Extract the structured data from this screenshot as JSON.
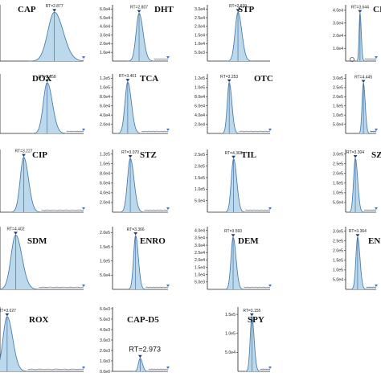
{
  "chart_data": [
    {
      "id": "CAP",
      "type": "area",
      "title": "CAP",
      "rt_label": "RT=2.877",
      "peak_rt": 2.877,
      "peak_height_frac": 0.95,
      "peak_width": 0.11,
      "show_tails": true,
      "xlim": [
        2.45,
        3.1
      ],
      "yticks": [],
      "ylabel": "",
      "xlabel": ""
    },
    {
      "id": "DHT",
      "type": "area",
      "title": "DHT",
      "rt_label": "RT=2.807",
      "peak_rt": 2.807,
      "peak_height_frac": 0.93,
      "peak_width": 0.1,
      "show_tails": true,
      "xlim": [
        2.4,
        3.25
      ],
      "yticks": [
        "1.0e4",
        "2.0e4",
        "3.0e4",
        "4.0e4",
        "5.0e4",
        "6.0e4"
      ],
      "ylabel": "",
      "xlabel": ""
    },
    {
      "id": "STP",
      "type": "area",
      "title": "STP",
      "rt_label": "RT=2.839",
      "peak_rt": 2.839,
      "peak_height_frac": 0.95,
      "peak_width": 0.09,
      "show_tails": false,
      "xlim": [
        2.4,
        3.3
      ],
      "yticks": [
        "5.0e3",
        "1.0e4",
        "1.5e4",
        "2.0e4",
        "2.5e4",
        "3.0e4"
      ],
      "ylabel": "",
      "xlabel": ""
    },
    {
      "id": "CI",
      "type": "area",
      "title": "CI",
      "rt_label": "RT=3.644",
      "peak_rt": 3.644,
      "peak_height_frac": 0.93,
      "peak_width": 0.07,
      "show_tails": true,
      "xlim": [
        3.15,
        4.2
      ],
      "yticks": [
        "1.0e4",
        "2.0e4",
        "3.0e4",
        "4.0e4"
      ],
      "ylabel": "",
      "xlabel": ""
    },
    {
      "id": "DOX",
      "type": "area",
      "title": "DOX",
      "rt_label": "RT=3.058",
      "peak_rt": 3.058,
      "peak_height_frac": 0.93,
      "peak_width": 0.08,
      "show_tails": true,
      "xlim": [
        2.6,
        3.4
      ],
      "yticks": [],
      "ylabel": "",
      "xlabel": ""
    },
    {
      "id": "TCA",
      "type": "area",
      "title": "TCA",
      "rt_label": "RT=3.401",
      "peak_rt": 3.401,
      "peak_height_frac": 0.94,
      "peak_width": 0.12,
      "show_tails": true,
      "xlim": [
        3.1,
        4.2
      ],
      "yticks": [
        "2.0e4",
        "4.0e4",
        "6.0e4",
        "8.0e4",
        "1.0e5",
        "1.2e5"
      ],
      "ylabel": "",
      "xlabel": ""
    },
    {
      "id": "OTC",
      "type": "area",
      "title": "OTC",
      "rt_label": "RT=3.253",
      "peak_rt": 3.253,
      "peak_height_frac": 0.93,
      "peak_width": 0.09,
      "show_tails": true,
      "xlim": [
        2.8,
        4.1
      ],
      "yticks": [
        "2.0e4",
        "4.0e4",
        "6.0e4",
        "8.0e4",
        "1.0e5",
        "1.2e5"
      ],
      "ylabel": "",
      "xlabel": ""
    },
    {
      "id": "S4",
      "type": "area",
      "title": "",
      "rt_label": "RT=4.445",
      "peak_rt": 4.445,
      "peak_height_frac": 0.92,
      "peak_width": 0.08,
      "show_tails": true,
      "xlim": [
        3.95,
        4.8
      ],
      "yticks": [
        "5.0e4",
        "1.0e5",
        "1.5e5",
        "2.0e5",
        "2.5e5",
        "3.0e5"
      ],
      "ylabel": "",
      "xlabel": ""
    },
    {
      "id": "CIP",
      "type": "area",
      "title": "CIP",
      "rt_label": "RT=3.227",
      "peak_rt": 3.227,
      "peak_height_frac": 0.95,
      "peak_width": 0.1,
      "show_tails": true,
      "xlim": [
        2.9,
        4.0
      ],
      "yticks": [],
      "ylabel": "",
      "xlabel": ""
    },
    {
      "id": "STZ",
      "type": "area",
      "title": "STZ",
      "rt_label": "RT=3.070",
      "peak_rt": 3.07,
      "peak_height_frac": 0.93,
      "peak_width": 0.11,
      "show_tails": true,
      "xlim": [
        2.75,
        3.75
      ],
      "yticks": [
        "2.0e4",
        "4.0e4",
        "6.0e4",
        "8.0e4",
        "1.0e5",
        "1.2e5"
      ],
      "ylabel": "",
      "xlabel": ""
    },
    {
      "id": "TIL",
      "type": "area",
      "title": "TIL",
      "rt_label": "RT=4.360",
      "peak_rt": 4.36,
      "peak_height_frac": 0.92,
      "peak_width": 0.09,
      "show_tails": true,
      "xlim": [
        3.9,
        5.0
      ],
      "yticks": [
        "5.0e4",
        "1.0e5",
        "1.5e5",
        "2.0e5",
        "2.5e5"
      ],
      "ylabel": "",
      "xlabel": ""
    },
    {
      "id": "SZ",
      "type": "area",
      "title": "SZ",
      "rt_label": "RT=3.304",
      "peak_rt": 3.304,
      "peak_height_frac": 0.93,
      "peak_width": 0.1,
      "show_tails": true,
      "xlim": [
        3.05,
        3.85
      ],
      "yticks": [
        "5.0e4",
        "1.0e5",
        "1.5e5",
        "2.0e5",
        "2.5e5",
        "3.0e5"
      ],
      "ylabel": "",
      "xlabel": ""
    },
    {
      "id": "SDM",
      "type": "area",
      "title": "SDM",
      "rt_label": "RT=4.402",
      "peak_rt": 4.402,
      "peak_height_frac": 0.94,
      "peak_width": 0.09,
      "show_tails": true,
      "xlim": [
        4.25,
        5.0
      ],
      "yticks": [],
      "ylabel": "",
      "xlabel": ""
    },
    {
      "id": "ENRO",
      "type": "area",
      "title": "ENRO",
      "rt_label": "RT=3.366",
      "peak_rt": 3.366,
      "peak_height_frac": 0.93,
      "peak_width": 0.08,
      "show_tails": true,
      "xlim": [
        2.95,
        3.95
      ],
      "yticks": [
        "5.0e4",
        "1.0e5",
        "1.5e5",
        "2.0e5"
      ],
      "ylabel": "",
      "xlabel": ""
    },
    {
      "id": "DEM",
      "type": "area",
      "title": "DEM",
      "rt_label": "RT=3.593",
      "peak_rt": 3.593,
      "peak_height_frac": 0.9,
      "peak_width": 0.09,
      "show_tails": true,
      "xlim": [
        3.1,
        4.3
      ],
      "yticks": [
        "5.0e3",
        "1.0e4",
        "1.5e4",
        "2.0e4",
        "2.5e4",
        "3.0e4",
        "3.5e4",
        "4.0e4"
      ],
      "ylabel": "",
      "xlabel": ""
    },
    {
      "id": "EN",
      "type": "area",
      "title": "EN",
      "rt_label": "RT=3.364",
      "peak_rt": 3.364,
      "peak_height_frac": 0.9,
      "peak_width": 0.1,
      "show_tails": true,
      "xlim": [
        3.05,
        3.85
      ],
      "yticks": [
        "5.0e4",
        "1.0e5",
        "1.5e5",
        "2.0e5",
        "2.5e5",
        "3.0e5"
      ],
      "ylabel": "",
      "xlabel": ""
    },
    {
      "id": "ROX",
      "type": "area",
      "title": "ROX",
      "rt_label": "RT=3.027",
      "peak_rt": 3.027,
      "peak_height_frac": 0.92,
      "peak_width": 0.08,
      "show_tails": true,
      "xlim": [
        2.95,
        3.7
      ],
      "yticks": [],
      "ylabel": "",
      "xlabel": ""
    },
    {
      "id": "CAP-D5",
      "type": "area",
      "title": "CAP-D5",
      "rt_label": "RT=2.973",
      "peak_rt": 2.973,
      "peak_height_frac": 0.22,
      "peak_width": 0.07,
      "show_tails": true,
      "xlim": [
        2.45,
        3.5
      ],
      "yticks": [
        "0.0e0",
        "1.0e3",
        "2.0e3",
        "3.0e3",
        "4.0e3",
        "5.0e3",
        "6.0e3"
      ],
      "ylabel": "",
      "xlabel": ""
    },
    {
      "id": "SPY",
      "type": "area",
      "title": "SPY",
      "rt_label": "RT=3.155",
      "peak_rt": 3.155,
      "peak_height_frac": 0.92,
      "peak_width": 0.12,
      "show_tails": true,
      "xlim": [
        2.7,
        3.75
      ],
      "yticks": [
        "5.0e4",
        "1.0e5",
        "1.5e5"
      ],
      "ylabel": "",
      "xlabel": ""
    }
  ]
}
